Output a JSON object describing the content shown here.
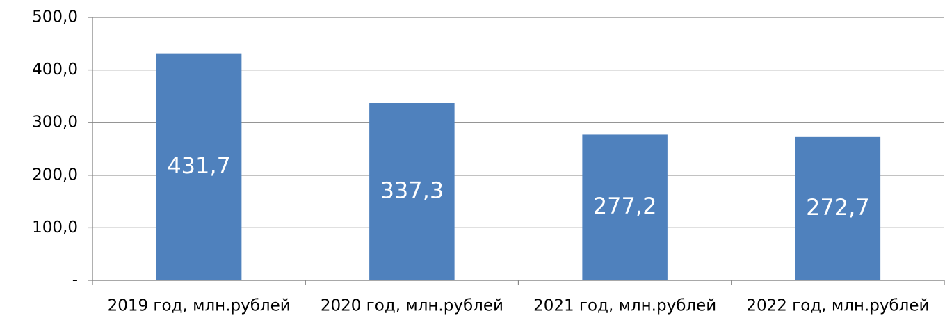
{
  "chart_data": {
    "type": "bar",
    "categories": [
      "2019 год, млн.рублей",
      "2020 год, млн.рублей",
      "2021 год, млн.рублей",
      "2022 год, млн.рублей"
    ],
    "values": [
      431.7,
      337.3,
      277.2,
      272.7
    ],
    "value_labels": [
      "431,7",
      "337,3",
      "277,2",
      "272,7"
    ],
    "color": "#4f81bd",
    "ylim": [
      0,
      500
    ],
    "yticks": [
      {
        "value": 0,
        "label": "-"
      },
      {
        "value": 100,
        "label": "100,0"
      },
      {
        "value": 200,
        "label": "200,0"
      },
      {
        "value": 300,
        "label": "300,0"
      },
      {
        "value": 400,
        "label": "400,0"
      },
      {
        "value": 500,
        "label": "500,0"
      }
    ],
    "grid": true
  }
}
